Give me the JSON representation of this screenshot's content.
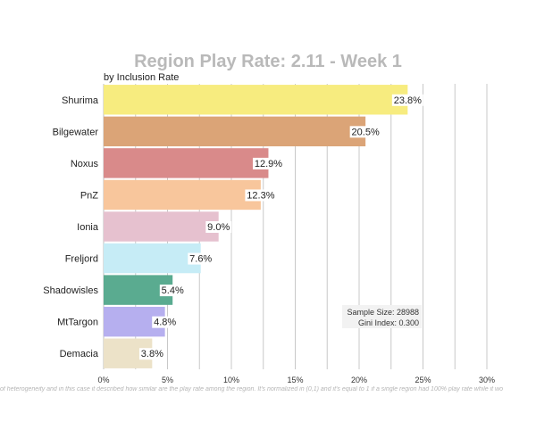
{
  "chart_data": {
    "type": "bar",
    "orientation": "horizontal",
    "title": "Region Play Rate: 2.11 - Week 1",
    "subtitle": "by Inclusion Rate",
    "categories": [
      "Shurima",
      "Bilgewater",
      "Noxus",
      "PnZ",
      "Ionia",
      "Freljord",
      "Shadowisles",
      "MtTargon",
      "Demacia"
    ],
    "values": [
      23.8,
      20.5,
      12.9,
      12.3,
      9.0,
      7.6,
      5.4,
      4.8,
      3.8
    ],
    "value_labels": [
      "23.8%",
      "20.5%",
      "12.9%",
      "12.3%",
      "9.0%",
      "7.6%",
      "5.4%",
      "4.8%",
      "3.8%"
    ],
    "colors": [
      "#f7ec7f",
      "#dba477",
      "#d98a8a",
      "#f8c69c",
      "#e6c1cf",
      "#c6ecf6",
      "#5aab90",
      "#b6afef",
      "#ece2c8"
    ],
    "xlim": [
      0,
      30
    ],
    "xticks": [
      "0%",
      "5%",
      "10%",
      "15%",
      "20%",
      "25%",
      "30%"
    ],
    "grid": true,
    "legend": "none",
    "annotation": {
      "sample_size": "Sample Size: 28988",
      "gini_index": "Gini Index: 0.300"
    },
    "footnote": "of heterogeneity and in this case it described how similar are the play rate among the region. It's normalized in (0,1) and it's equal to 1 if a single region had 100% play rate while it wo"
  }
}
